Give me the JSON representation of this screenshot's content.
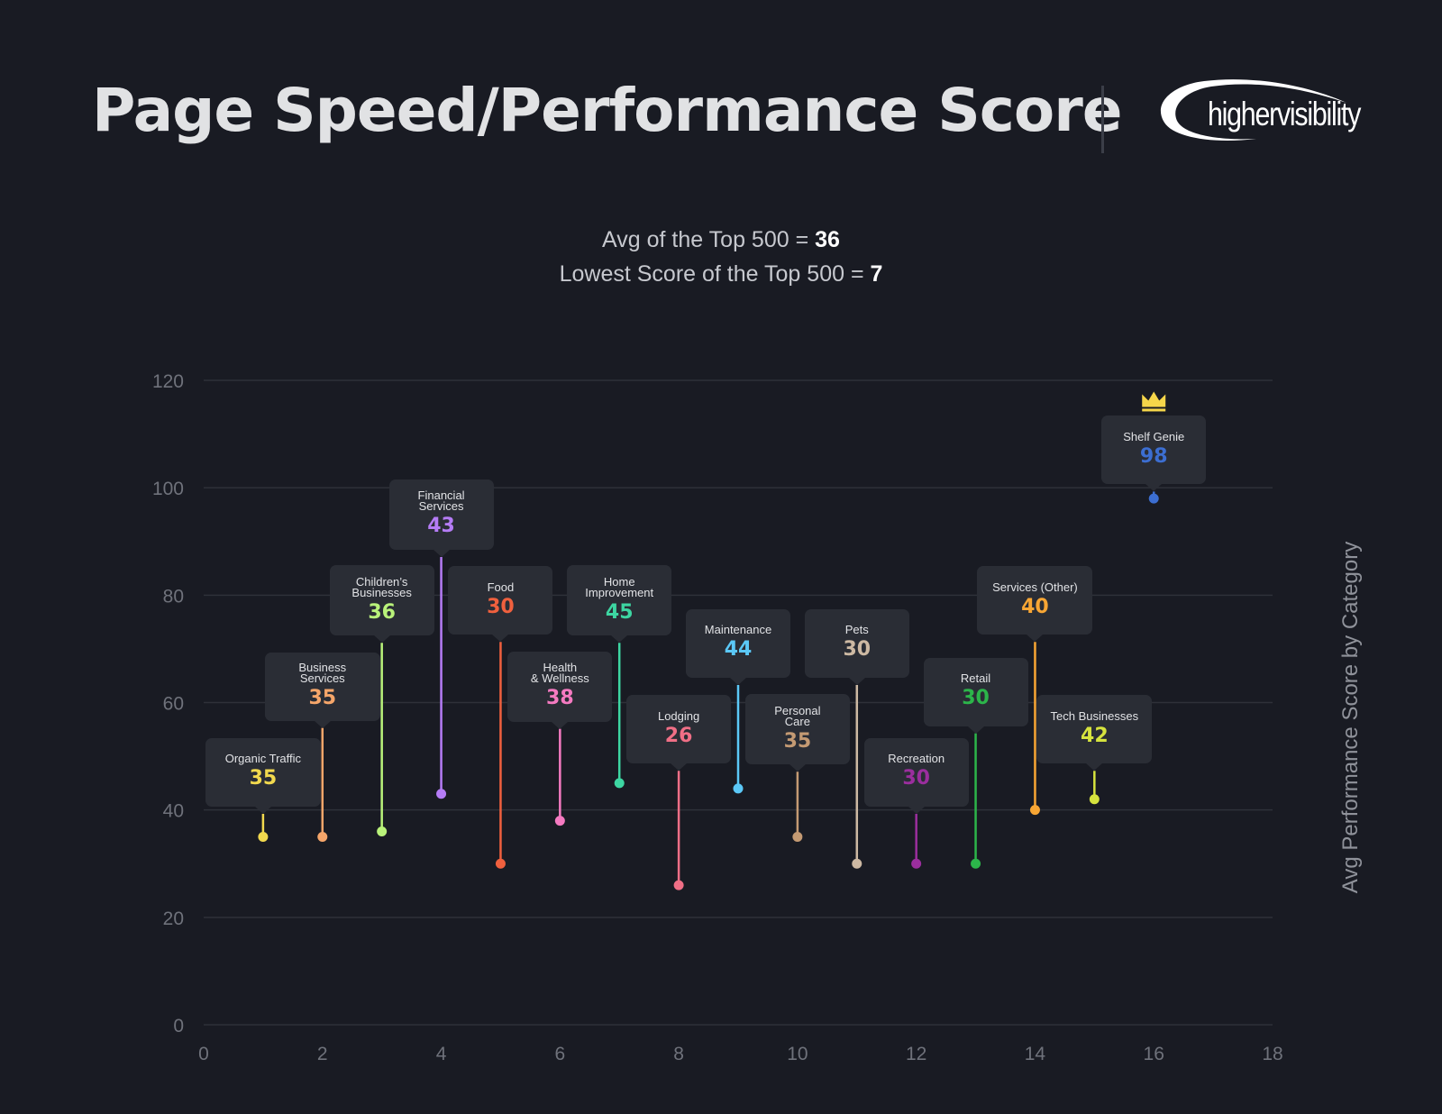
{
  "header": {
    "title": "Page Speed/Performance Score",
    "logo_text": "highervisibility"
  },
  "stats": {
    "avg_label": "Avg of the Top 500 = ",
    "avg_value": "36",
    "lowest_label": "Lowest Score of the Top 500 = ",
    "lowest_value": "7"
  },
  "chart_data": {
    "type": "scatter",
    "title": "",
    "xlabel": "",
    "ylabel": "Avg Performance Score by Category",
    "xlim": [
      0,
      18
    ],
    "ylim": [
      0,
      120
    ],
    "x_ticks": [
      0,
      2,
      4,
      6,
      8,
      10,
      12,
      14,
      16,
      18
    ],
    "y_ticks": [
      0,
      20,
      40,
      60,
      80,
      100,
      120
    ],
    "grid": true,
    "points": [
      {
        "x": 1,
        "y": 35,
        "label": "Organic Traffic",
        "value_label": "35",
        "color": "#f2d94e",
        "callout_y": 47
      },
      {
        "x": 2,
        "y": 35,
        "label": "Business Services",
        "value_label": "35",
        "color": "#f6a66a",
        "callout_y": 63
      },
      {
        "x": 3,
        "y": 36,
        "label": "Children’s\nBusinesses",
        "value_label": "36",
        "color": "#b9f27a",
        "callout_y": 79
      },
      {
        "x": 4,
        "y": 43,
        "label": "Financial\nServices",
        "value_label": "43",
        "color": "#b57cf6",
        "callout_y": 95
      },
      {
        "x": 5,
        "y": 30,
        "label": "Food",
        "value_label": "30",
        "color": "#f0603e",
        "callout_y": 79
      },
      {
        "x": 6,
        "y": 38,
        "label": "Health\n& Wellness",
        "value_label": "38",
        "color": "#f57ac1",
        "callout_y": 63
      },
      {
        "x": 7,
        "y": 45,
        "label": "Home\nImprovement",
        "value_label": "45",
        "color": "#3dd6a2",
        "callout_y": 79
      },
      {
        "x": 8,
        "y": 26,
        "label": "Lodging",
        "value_label": "26",
        "color": "#f06f86",
        "callout_y": 55
      },
      {
        "x": 9,
        "y": 44,
        "label": "Maintenance",
        "value_label": "44",
        "color": "#5bc8f7",
        "callout_y": 71
      },
      {
        "x": 10,
        "y": 35,
        "label": "Personal\nCare",
        "value_label": "35",
        "color": "#c49a73",
        "callout_y": 55
      },
      {
        "x": 11,
        "y": 30,
        "label": "Pets",
        "value_label": "30",
        "color": "#cdb9a3",
        "callout_y": 71
      },
      {
        "x": 12,
        "y": 30,
        "label": "Recreation",
        "value_label": "30",
        "color": "#9b2e9e",
        "callout_y": 47
      },
      {
        "x": 13,
        "y": 30,
        "label": "Retail",
        "value_label": "30",
        "color": "#2cb54a",
        "callout_y": 62
      },
      {
        "x": 14,
        "y": 40,
        "label": "Services (Other)",
        "value_label": "40",
        "color": "#f8a634",
        "callout_y": 79
      },
      {
        "x": 15,
        "y": 42,
        "label": "Tech Businesses",
        "value_label": "42",
        "color": "#d6e33e",
        "callout_y": 55
      },
      {
        "x": 16,
        "y": 98,
        "label": "Shelf Genie",
        "value_label": "98",
        "color": "#3c6ed1",
        "callout_y": 107,
        "crown": true
      }
    ],
    "colors": {
      "background": "#191b23",
      "grid": "#2e3139",
      "tick_label": "#6f727b",
      "callout_bg": "#2a2d35",
      "crown": "#f5d64a"
    }
  }
}
